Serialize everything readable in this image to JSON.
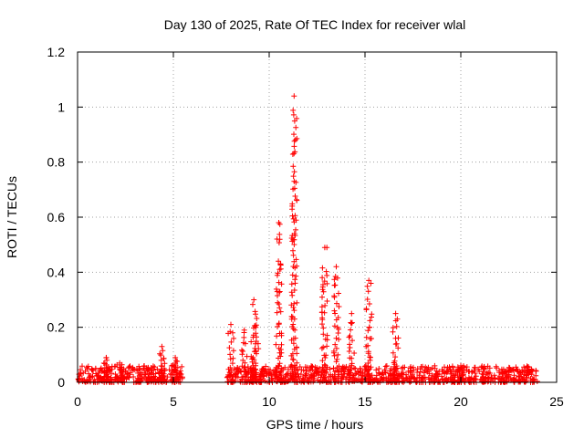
{
  "chart_data": {
    "type": "scatter",
    "title": "Day 130 of 2025, Rate Of TEC Index for receiver wlal",
    "xlabel": "GPS time / hours",
    "ylabel": "ROTI / TECUs",
    "xlim": [
      0,
      25
    ],
    "ylim": [
      0,
      1.2
    ],
    "xticks": [
      0,
      5,
      10,
      15,
      20,
      25
    ],
    "yticks": [
      0,
      0.2,
      0.4,
      0.6,
      0.8,
      1,
      1.2
    ],
    "xtick_labels": [
      "0",
      "5",
      "10",
      "15",
      "20",
      "25"
    ],
    "ytick_labels": [
      "0",
      "0.2",
      "0.4",
      "0.6",
      "0.8",
      "1",
      "1.2"
    ],
    "grid": true,
    "marker": "+",
    "marker_color": "#ff0000",
    "series": [
      {
        "baseline_segments": [
          {
            "x_start": 0.0,
            "x_end": 5.5,
            "y_min": 0.0,
            "y_max": 0.06
          },
          {
            "x_start": 7.8,
            "x_end": 24.0,
            "y_min": 0.0,
            "y_max": 0.06
          }
        ],
        "spikes": [
          {
            "x": 1.5,
            "peak": 0.09
          },
          {
            "x": 2.2,
            "peak": 0.07
          },
          {
            "x": 4.4,
            "peak": 0.13
          },
          {
            "x": 5.1,
            "peak": 0.09
          },
          {
            "x": 8.0,
            "peak": 0.21
          },
          {
            "x": 8.7,
            "peak": 0.19
          },
          {
            "x": 9.2,
            "peak": 0.3
          },
          {
            "x": 9.3,
            "peak": 0.2
          },
          {
            "x": 10.5,
            "peak": 0.58
          },
          {
            "x": 11.3,
            "peak": 1.04
          },
          {
            "x": 12.9,
            "peak": 0.49
          },
          {
            "x": 13.5,
            "peak": 0.42
          },
          {
            "x": 14.3,
            "peak": 0.25
          },
          {
            "x": 15.2,
            "peak": 0.37
          },
          {
            "x": 16.6,
            "peak": 0.25
          },
          {
            "x": 20.0,
            "peak": 0.06
          }
        ]
      }
    ]
  }
}
